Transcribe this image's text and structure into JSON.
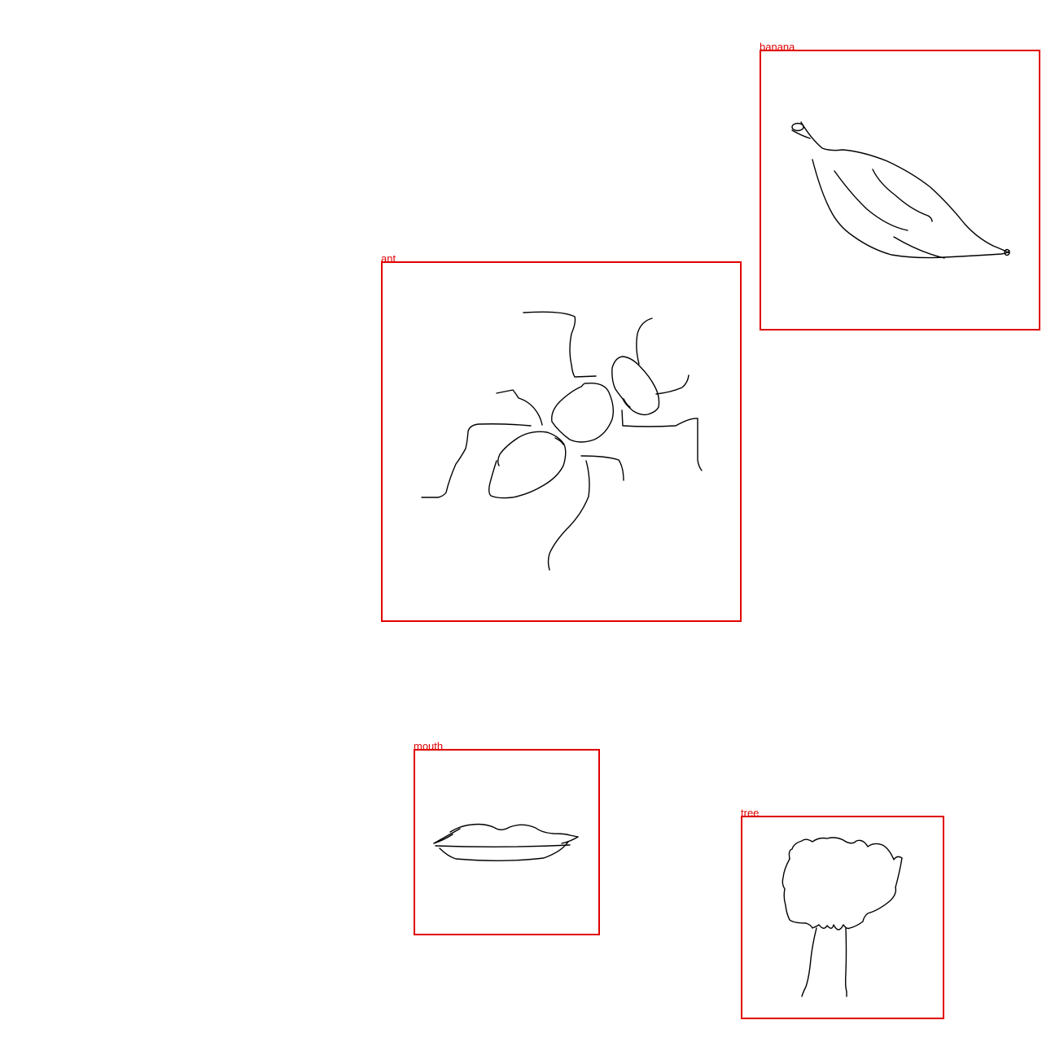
{
  "colors": {
    "box_stroke": "#e00000",
    "label_text": "#e00000",
    "sketch_stroke": "#000000",
    "background": "#ffffff"
  },
  "boxes": [
    {
      "label": "banana"
    },
    {
      "label": "ant"
    },
    {
      "label": "mouth"
    },
    {
      "label": "tree"
    }
  ]
}
